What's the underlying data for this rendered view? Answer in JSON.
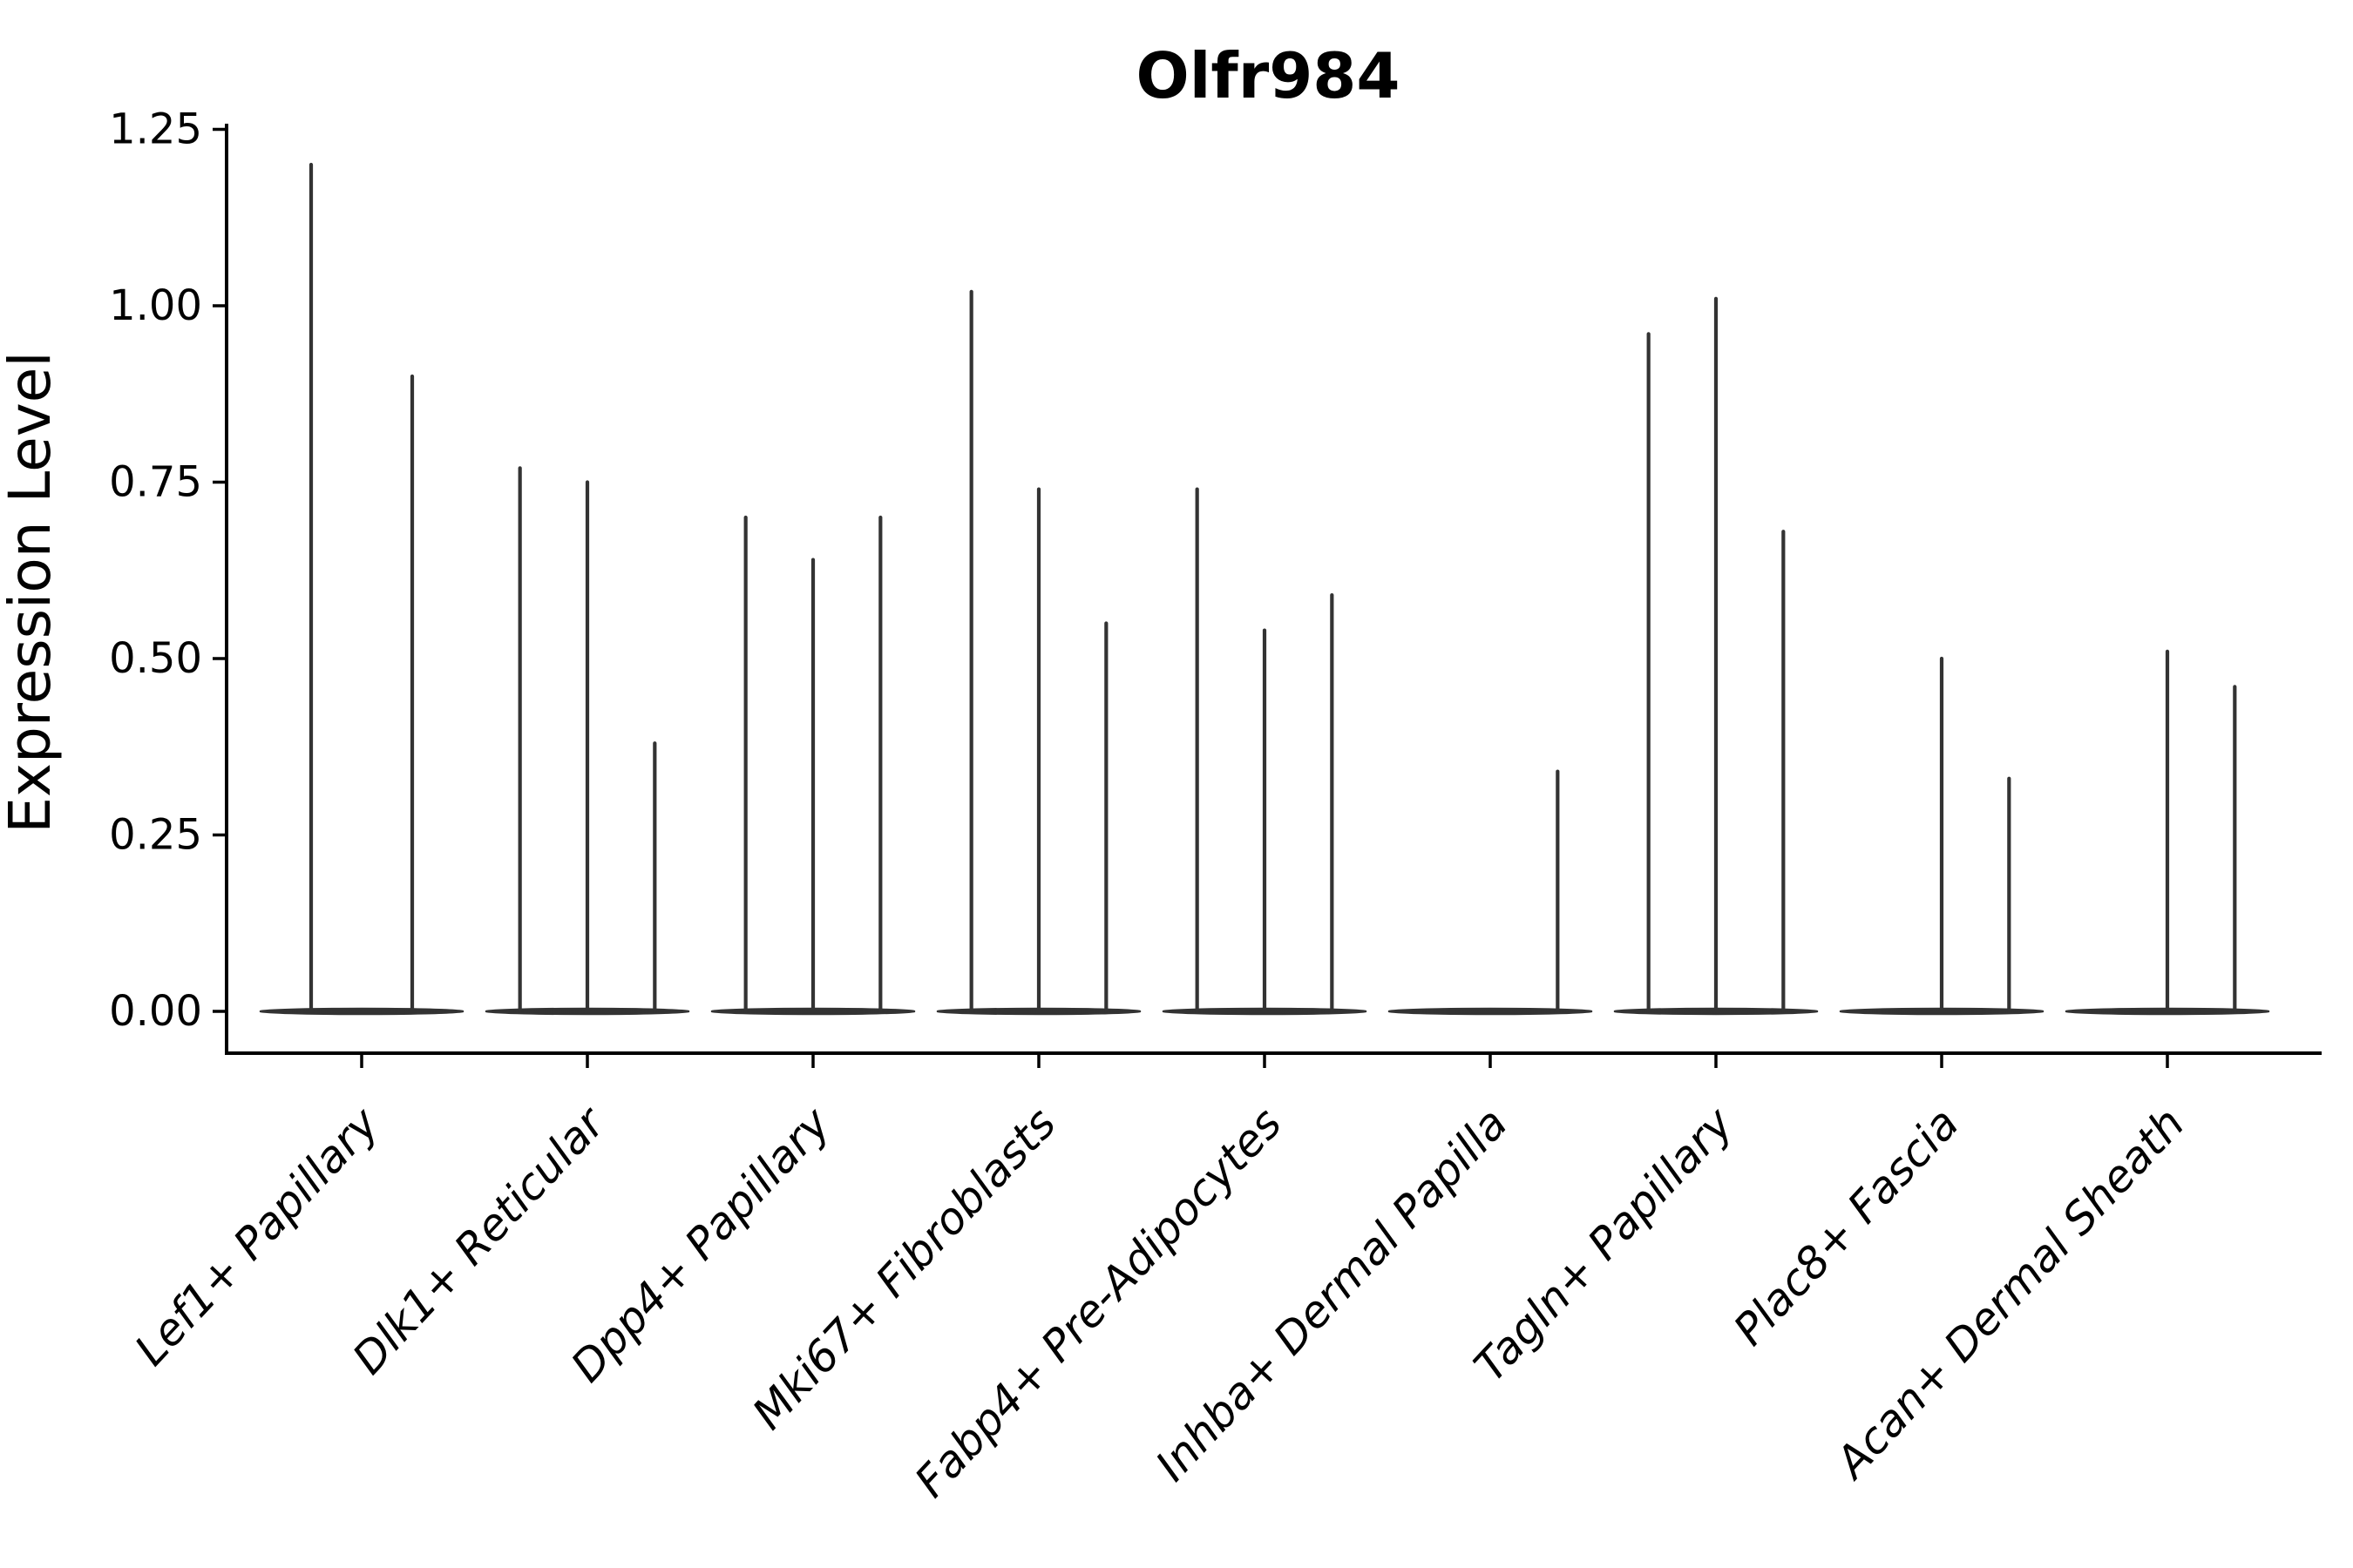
{
  "page": {
    "background": "#ffffff"
  },
  "chart_data": {
    "type": "violin",
    "title": "Olfr984",
    "ylabel": "Expression Level",
    "xlabel": "",
    "grid": false,
    "legend": null,
    "violin_color": "#333333",
    "axis_color": "#000000",
    "ylim": [
      -0.06,
      1.26
    ],
    "yticks": [
      "0.00",
      "0.25",
      "0.50",
      "0.75",
      "1.00",
      "1.25"
    ],
    "ytick_values": [
      0.0,
      0.25,
      0.5,
      0.75,
      1.0,
      1.25
    ],
    "categories": [
      {
        "label": "Lef1+ Papillary",
        "slots": 2,
        "spikes": [
          {
            "slot": 1,
            "value": 1.2
          },
          {
            "slot": 2,
            "value": 0.9
          }
        ]
      },
      {
        "label": "Dlk1+ Reticular",
        "slots": 3,
        "spikes": [
          {
            "slot": 1,
            "value": 0.77
          },
          {
            "slot": 2,
            "value": 0.75
          },
          {
            "slot": 3,
            "value": 0.38
          }
        ]
      },
      {
        "label": "Dpp4+ Papillary",
        "slots": 3,
        "spikes": [
          {
            "slot": 1,
            "value": 0.7
          },
          {
            "slot": 2,
            "value": 0.64
          },
          {
            "slot": 3,
            "value": 0.7
          }
        ]
      },
      {
        "label": "Mki67+ Fibroblasts",
        "slots": 3,
        "spikes": [
          {
            "slot": 1,
            "value": 1.02
          },
          {
            "slot": 2,
            "value": 0.74
          },
          {
            "slot": 3,
            "value": 0.55
          }
        ]
      },
      {
        "label": "Fabp4+ Pre-Adipocytes",
        "slots": 3,
        "spikes": [
          {
            "slot": 1,
            "value": 0.74
          },
          {
            "slot": 2,
            "value": 0.54
          },
          {
            "slot": 3,
            "value": 0.59
          }
        ]
      },
      {
        "label": "Inhba+ Dermal Papilla",
        "slots": 3,
        "spikes": [
          {
            "slot": 3,
            "value": 0.34
          }
        ]
      },
      {
        "label": "Tagln+ Papillary",
        "slots": 3,
        "spikes": [
          {
            "slot": 1,
            "value": 0.96
          },
          {
            "slot": 2,
            "value": 1.01
          },
          {
            "slot": 3,
            "value": 0.68
          }
        ]
      },
      {
        "label": "Plac8+ Fascia",
        "slots": 3,
        "spikes": [
          {
            "slot": 2,
            "value": 0.5
          },
          {
            "slot": 3,
            "value": 0.33
          }
        ]
      },
      {
        "label": "Acan+ Dermal Sheath",
        "slots": 3,
        "spikes": [
          {
            "slot": 2,
            "value": 0.51
          },
          {
            "slot": 3,
            "value": 0.46
          }
        ]
      }
    ]
  }
}
